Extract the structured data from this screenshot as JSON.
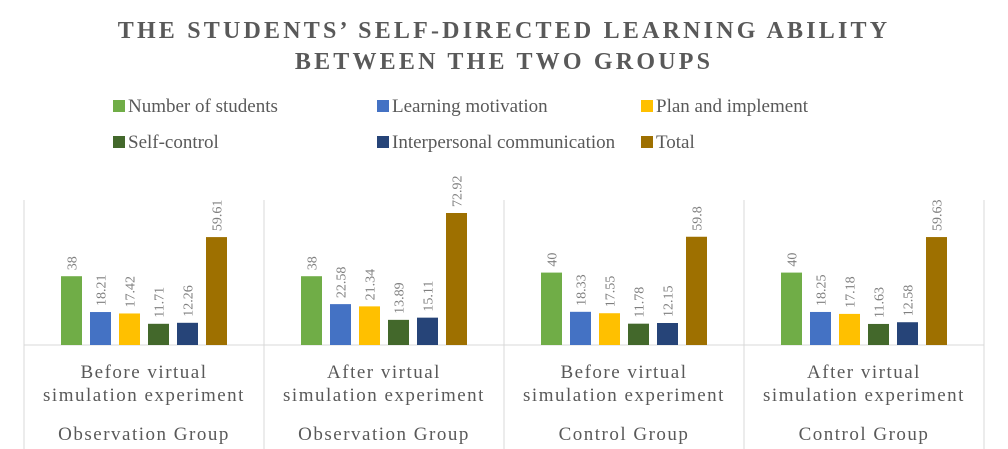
{
  "chart_data": {
    "type": "bar",
    "title_lines": [
      "THE STUDENTS’ SELF-DIRECTED LEARNING ABILITY",
      "BETWEEN THE TWO GROUPS"
    ],
    "categories": [
      {
        "lines": [
          "Before virtual",
          "simulation experiment"
        ],
        "group": "Observation Group"
      },
      {
        "lines": [
          "After virtual",
          "simulation experiment"
        ],
        "group": "Observation Group"
      },
      {
        "lines": [
          "Before virtual",
          "simulation experiment"
        ],
        "group": "Control Group"
      },
      {
        "lines": [
          "After virtual",
          "simulation experiment"
        ],
        "group": "Control Group"
      }
    ],
    "series": [
      {
        "name": "Number of students",
        "color": "#70ad47",
        "values": [
          38,
          38,
          40,
          40
        ],
        "labels": [
          "38",
          "38",
          "40",
          "40"
        ]
      },
      {
        "name": "Learning motivation",
        "color": "#4472c4",
        "values": [
          18.21,
          22.58,
          18.33,
          18.25
        ],
        "labels": [
          "18.21",
          "22.58",
          "18.33",
          "18.25"
        ]
      },
      {
        "name": "Plan and implement",
        "color": "#ffc000",
        "values": [
          17.42,
          21.34,
          17.55,
          17.18
        ],
        "labels": [
          "17.42",
          "21.34",
          "17.55",
          "17.18"
        ]
      },
      {
        "name": "Self-control",
        "color": "#43682b",
        "values": [
          11.71,
          13.89,
          11.78,
          11.63
        ],
        "labels": [
          "11.71",
          "13.89",
          "11.78",
          "11.63"
        ]
      },
      {
        "name": "Interpersonal communication",
        "color": "#264478",
        "values": [
          12.26,
          15.11,
          12.15,
          12.58
        ],
        "labels": [
          "12.26",
          "15.11",
          "12.15",
          "12.58"
        ]
      },
      {
        "name": "Total",
        "color": "#9e7000",
        "values": [
          59.61,
          72.92,
          59.8,
          59.63
        ],
        "labels": [
          "59.61",
          "72.92",
          "59.8",
          "59.63"
        ]
      }
    ],
    "ylim": [
      0,
      80
    ],
    "grid": false,
    "legend_position": "top"
  }
}
